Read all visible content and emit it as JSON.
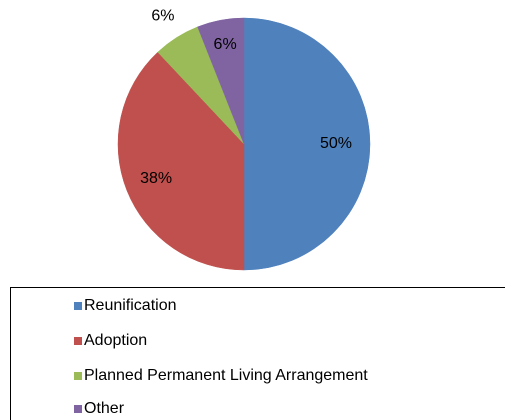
{
  "chart_data": {
    "type": "pie",
    "categories": [
      "Reunification",
      "Adoption",
      "Planned Permanent Living Arrangement",
      "Other"
    ],
    "values": [
      50,
      38,
      6,
      6
    ],
    "value_labels": [
      "50%",
      "38%",
      "6%",
      "6%"
    ],
    "colors": [
      "#4f81bd",
      "#c0504d",
      "#9bbb59",
      "#8064a2"
    ],
    "legend": "bottom"
  }
}
